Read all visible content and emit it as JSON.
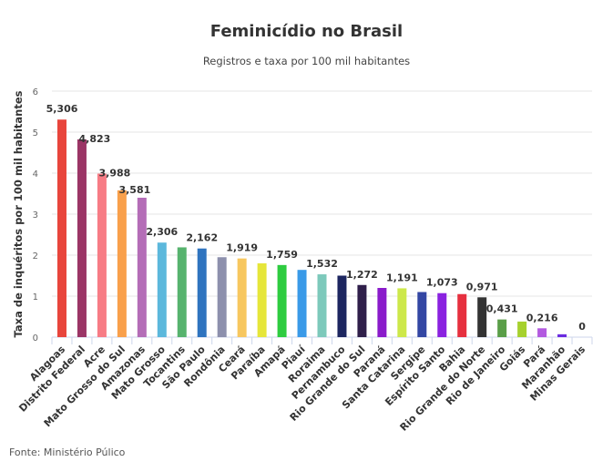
{
  "chart_data": {
    "type": "bar",
    "title": "Feminicídio no Brasil",
    "subtitle": "Registros e taxa por 100 mil habitantes",
    "ylabel": "Taxa de inquéritos por 100 mil habitantes",
    "xlabel": "",
    "ylim": [
      0,
      6
    ],
    "yticks": [
      "0",
      "1",
      "2",
      "3",
      "4",
      "5",
      "6"
    ],
    "grid": true,
    "source": "Fonte: Ministério Púlico",
    "categories": [
      "Alagoas",
      "Distrito Federal",
      "Acre",
      "Mato Grosso do Sul",
      "Amazonas",
      "Mato Grosso",
      "Tocantins",
      "São Paulo",
      "Rondônia",
      "Ceará",
      "Paraíba",
      "Amapá",
      "Piauí",
      "Roraima",
      "Pernambuco",
      "Rio Grande do Sul",
      "Paraná",
      "Santa Catarina",
      "Sergipe",
      "Espírito Santo",
      "Bahia",
      "Rio Grande do Norte",
      "Rio de Janeiro",
      "Goiás",
      "Pará",
      "Maranhão",
      "Minas Gerais"
    ],
    "values": [
      5.306,
      4.823,
      3.988,
      3.581,
      3.4,
      2.306,
      2.19,
      2.162,
      1.95,
      1.919,
      1.8,
      1.759,
      1.64,
      1.532,
      1.5,
      1.272,
      1.2,
      1.191,
      1.1,
      1.073,
      1.05,
      0.971,
      0.431,
      0.38,
      0.216,
      0.07,
      0
    ],
    "data_labels": [
      "5,306",
      "4,823",
      "3,988",
      "3,581",
      null,
      "2,306",
      null,
      "2,162",
      null,
      "1,919",
      null,
      "1,759",
      null,
      "1,532",
      null,
      "1,272",
      null,
      "1,191",
      null,
      "1,073",
      null,
      "0,971",
      "0,431",
      null,
      "0,216",
      null,
      "0"
    ],
    "colors": [
      "#e8453c",
      "#9b3566",
      "#f77c85",
      "#f9a04b",
      "#b46db7",
      "#5cb8dc",
      "#57b36e",
      "#2f74bf",
      "#8d90ad",
      "#f7c75f",
      "#e6e63a",
      "#2ecc40",
      "#3a9ae8",
      "#7dc9bb",
      "#1d2660",
      "#2f1f4a",
      "#8a1bcb",
      "#cde84a",
      "#3346a3",
      "#8a22e0",
      "#e6303f",
      "#333333",
      "#5a9e48",
      "#a6d12e",
      "#b25ae0",
      "#6a2be0",
      "#cccccc"
    ]
  }
}
